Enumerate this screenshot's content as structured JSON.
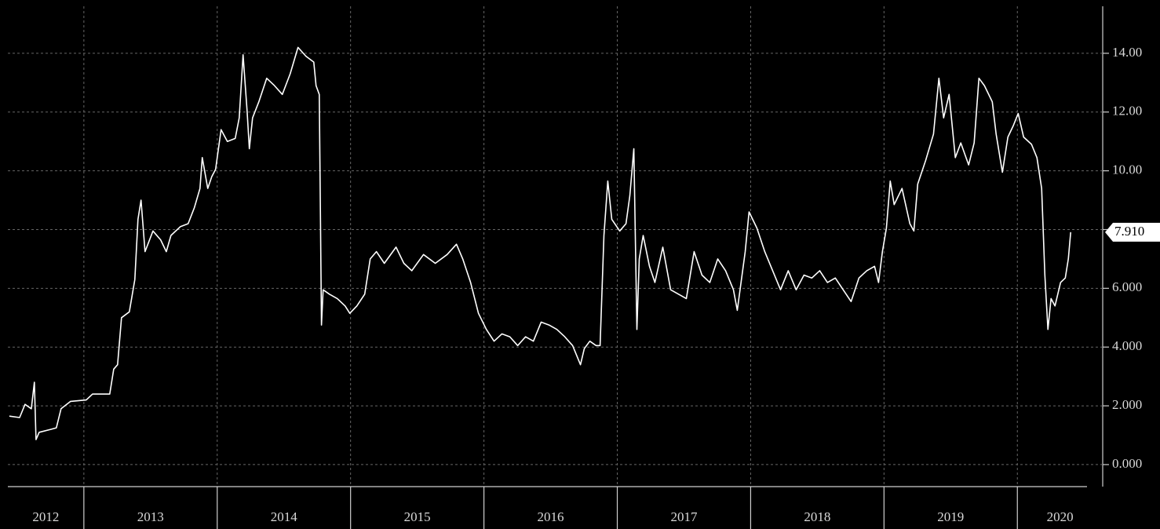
{
  "chart_data": {
    "type": "line",
    "color": "#ffffff",
    "x": [
      2012.441,
      2012.518,
      2012.559,
      2012.606,
      2012.629,
      2012.641,
      2012.665,
      2012.753,
      2012.794,
      2012.829,
      2012.9,
      2013.018,
      2013.065,
      2013.194,
      2013.224,
      2013.253,
      2013.282,
      2013.341,
      2013.382,
      2013.406,
      2013.429,
      2013.459,
      2013.518,
      2013.576,
      2013.618,
      2013.653,
      2013.724,
      2013.782,
      2013.829,
      2013.871,
      2013.888,
      2013.929,
      2013.959,
      2013.988,
      2014.029,
      2014.076,
      2014.135,
      2014.165,
      2014.194,
      2014.224,
      2014.241,
      2014.265,
      2014.312,
      2014.371,
      2014.429,
      2014.488,
      2014.547,
      2014.606,
      2014.665,
      2014.724,
      2014.741,
      2014.765,
      2014.782,
      2014.794,
      2014.841,
      2014.9,
      2014.959,
      2014.994,
      2015.047,
      2015.106,
      2015.147,
      2015.194,
      2015.253,
      2015.341,
      2015.4,
      2015.459,
      2015.547,
      2015.635,
      2015.724,
      2015.794,
      2015.841,
      2015.9,
      2015.959,
      2016.018,
      2016.076,
      2016.135,
      2016.194,
      2016.253,
      2016.312,
      2016.371,
      2016.429,
      2016.488,
      2016.547,
      2016.606,
      2016.665,
      2016.724,
      2016.753,
      2016.794,
      2016.841,
      2016.871,
      2016.9,
      2016.929,
      2016.959,
      2017.018,
      2017.065,
      2017.094,
      2017.124,
      2017.147,
      2017.165,
      2017.194,
      2017.241,
      2017.282,
      2017.341,
      2017.4,
      2017.459,
      2017.518,
      2017.576,
      2017.635,
      2017.694,
      2017.753,
      2017.812,
      2017.871,
      2017.9,
      2017.959,
      2017.988,
      2018.047,
      2018.106,
      2018.165,
      2018.224,
      2018.282,
      2018.341,
      2018.4,
      2018.459,
      2018.518,
      2018.576,
      2018.635,
      2018.694,
      2018.753,
      2018.812,
      2018.871,
      2018.929,
      2018.959,
      2018.988,
      2019.018,
      2019.047,
      2019.076,
      2019.135,
      2019.194,
      2019.224,
      2019.253,
      2019.312,
      2019.371,
      2019.412,
      2019.447,
      2019.488,
      2019.535,
      2019.576,
      2019.635,
      2019.676,
      2019.712,
      2019.753,
      2019.812,
      2019.841,
      2019.888,
      2019.929,
      2019.971,
      2020.006,
      2020.047,
      2020.106,
      2020.147,
      2020.182,
      2020.206,
      2020.229,
      2020.253,
      2020.282,
      2020.324,
      2020.359,
      2020.382,
      2020.4
    ],
    "values": [
      1.65,
      1.6,
      2.05,
      1.9,
      2.8,
      0.85,
      1.1,
      1.2,
      1.25,
      1.9,
      2.15,
      2.2,
      2.4,
      2.4,
      3.25,
      3.4,
      5.0,
      5.2,
      6.3,
      8.35,
      9.0,
      7.25,
      7.95,
      7.65,
      7.25,
      7.8,
      8.1,
      8.2,
      8.75,
      9.4,
      10.45,
      9.4,
      9.8,
      10.05,
      11.4,
      11.0,
      11.1,
      11.8,
      13.95,
      12.05,
      10.75,
      11.8,
      12.35,
      13.15,
      12.9,
      12.6,
      13.3,
      14.2,
      13.9,
      13.7,
      12.9,
      12.6,
      4.75,
      5.95,
      5.8,
      5.65,
      5.4,
      5.15,
      5.4,
      5.8,
      7.0,
      7.25,
      6.85,
      7.4,
      6.85,
      6.6,
      7.15,
      6.85,
      7.15,
      7.5,
      7.0,
      6.2,
      5.15,
      4.6,
      4.2,
      4.45,
      4.35,
      4.05,
      4.35,
      4.2,
      4.85,
      4.75,
      4.6,
      4.35,
      4.05,
      3.4,
      3.95,
      4.2,
      4.05,
      4.05,
      7.8,
      9.65,
      8.35,
      7.95,
      8.2,
      9.15,
      10.75,
      4.6,
      7.0,
      7.8,
      6.75,
      6.2,
      7.4,
      5.95,
      5.8,
      5.65,
      7.25,
      6.45,
      6.2,
      7.0,
      6.6,
      5.95,
      5.25,
      7.25,
      8.6,
      8.05,
      7.25,
      6.6,
      5.95,
      6.6,
      5.95,
      6.45,
      6.35,
      6.6,
      6.2,
      6.35,
      5.95,
      5.55,
      6.35,
      6.6,
      6.75,
      6.2,
      7.25,
      8.05,
      9.65,
      8.85,
      9.4,
      8.2,
      7.95,
      9.55,
      10.35,
      11.25,
      13.15,
      11.8,
      12.6,
      10.45,
      10.95,
      10.2,
      10.95,
      13.15,
      12.9,
      12.35,
      11.25,
      9.95,
      11.15,
      11.55,
      11.95,
      11.15,
      10.9,
      10.45,
      9.4,
      6.45,
      4.6,
      5.65,
      5.4,
      6.2,
      6.35,
      7.0,
      7.91
    ],
    "last_price": {
      "value": 7.91,
      "label": "7.910"
    },
    "xlim": [
      2012.43,
      2020.64
    ],
    "xticks": [
      {
        "value": 2012,
        "label": "2012"
      },
      {
        "value": 2013,
        "label": "2013"
      },
      {
        "value": 2014,
        "label": "2014"
      },
      {
        "value": 2015,
        "label": "2015"
      },
      {
        "value": 2016,
        "label": "2016"
      },
      {
        "value": 2017,
        "label": "2017"
      },
      {
        "value": 2018,
        "label": "2018"
      },
      {
        "value": 2019,
        "label": "2019"
      },
      {
        "value": 2020,
        "label": "2020"
      }
    ],
    "ylim": [
      -0.75,
      15.6
    ],
    "yticks": [
      {
        "value": 0,
        "label": "0.000"
      },
      {
        "value": 2,
        "label": "2.000"
      },
      {
        "value": 4,
        "label": "4.000"
      },
      {
        "value": 6,
        "label": "6.000"
      },
      {
        "value": 8,
        "label": "8.000"
      },
      {
        "value": 10,
        "label": "10.00"
      },
      {
        "value": 12,
        "label": "12.00"
      },
      {
        "value": 14,
        "label": "14.00"
      }
    ],
    "grid": true
  }
}
